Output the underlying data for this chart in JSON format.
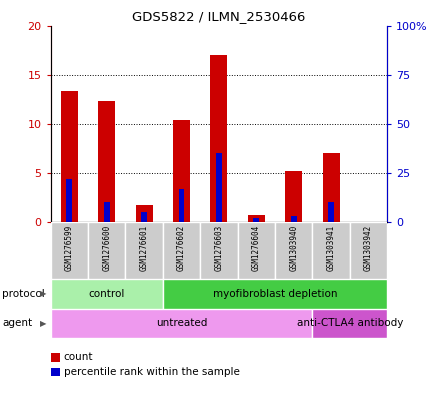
{
  "title": "GDS5822 / ILMN_2530466",
  "samples": [
    "GSM1276599",
    "GSM1276600",
    "GSM1276601",
    "GSM1276602",
    "GSM1276603",
    "GSM1276604",
    "GSM1303940",
    "GSM1303941",
    "GSM1303942"
  ],
  "counts": [
    13.3,
    12.3,
    1.7,
    10.4,
    17.0,
    0.7,
    5.2,
    7.0,
    0.0
  ],
  "percentiles": [
    22,
    10,
    5,
    17,
    35,
    2,
    3,
    10,
    0
  ],
  "ylim_left": [
    0,
    20
  ],
  "ylim_right": [
    0,
    100
  ],
  "yticks_left": [
    0,
    5,
    10,
    15,
    20
  ],
  "yticks_right": [
    0,
    25,
    50,
    75,
    100
  ],
  "ytick_labels_left": [
    "0",
    "5",
    "10",
    "15",
    "20"
  ],
  "ytick_labels_right": [
    "0",
    "25",
    "50",
    "75",
    "100%"
  ],
  "bar_color": "#cc0000",
  "percentile_color": "#0000cc",
  "bar_width": 0.45,
  "percentile_bar_width": 0.15,
  "protocol_groups": [
    {
      "label": "control",
      "start": 0,
      "end": 2,
      "color": "#aaf0aa"
    },
    {
      "label": "myofibroblast depletion",
      "start": 3,
      "end": 8,
      "color": "#44cc44"
    }
  ],
  "agent_groups": [
    {
      "label": "untreated",
      "start": 0,
      "end": 6,
      "color": "#ee99ee"
    },
    {
      "label": "anti-CTLA4 antibody",
      "start": 7,
      "end": 8,
      "color": "#cc55cc"
    }
  ],
  "protocol_label": "protocol",
  "agent_label": "agent",
  "legend_count_label": "count",
  "legend_percentile_label": "percentile rank within the sample",
  "sample_bg": "#cccccc",
  "plot_bg": "#ffffff"
}
